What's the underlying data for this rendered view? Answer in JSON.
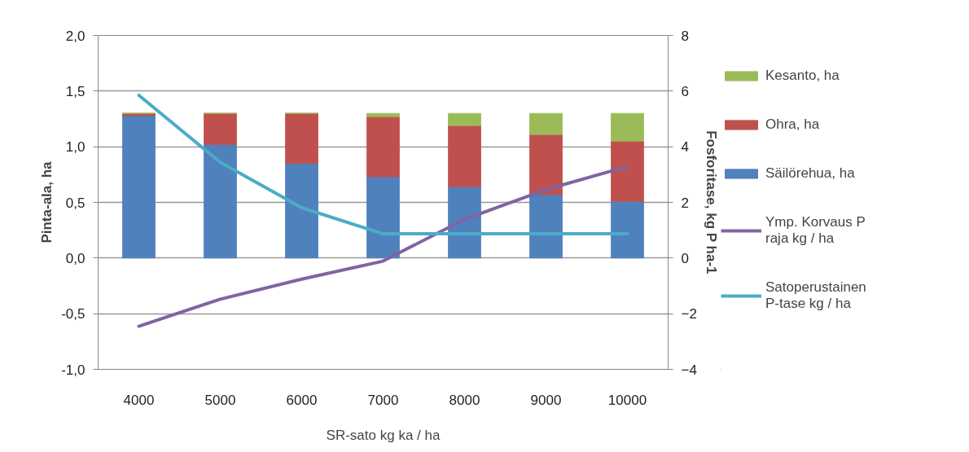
{
  "chart_data": {
    "type": "bar",
    "stacked": true,
    "xlabel": "SR-sato kg ka / ha",
    "ylabel": "Pinta-ala, ha",
    "y2label": "Fosforitase, kg P ha-1",
    "categories": [
      "4000",
      "5000",
      "6000",
      "7000",
      "8000",
      "9000",
      "10000"
    ],
    "series": [
      {
        "name": "Säilörehua, ha",
        "color": "#4f81bd",
        "values": [
          1.28,
          1.02,
          0.85,
          0.73,
          0.64,
          0.57,
          0.51
        ]
      },
      {
        "name": "Ohra, ha",
        "color": "#c0504d",
        "values": [
          0.02,
          0.28,
          0.45,
          0.54,
          0.55,
          0.54,
          0.54
        ]
      },
      {
        "name": "Kesanto, ha",
        "color": "#9bbb59",
        "values": [
          0,
          0,
          0,
          0.03,
          0.11,
          0.19,
          0.25
        ]
      },
      {
        "name": "Ymp. Korvaus P raja kg / ha",
        "type": "line",
        "axis": "y2",
        "color": "#8064a2",
        "values": [
          -2.45,
          -1.48,
          -0.76,
          -0.11,
          1.39,
          2.46,
          3.29
        ]
      },
      {
        "name": "Satoperustainen P-tase kg / ha",
        "type": "line",
        "axis": "y2",
        "color": "#4bacc6",
        "values": [
          5.85,
          3.44,
          1.81,
          0.87,
          0.87,
          0.87,
          0.87
        ]
      }
    ],
    "ylim": [
      -1,
      2
    ],
    "yticks": [
      {
        "value": -1,
        "label": "-1,0"
      },
      {
        "value": -0.5,
        "label": "-0,5"
      },
      {
        "value": 0,
        "label": "0,0"
      },
      {
        "value": 0.5,
        "label": "0,5"
      },
      {
        "value": 1,
        "label": "1,0"
      },
      {
        "value": 1.5,
        "label": "1,5"
      },
      {
        "value": 2,
        "label": "2,0"
      }
    ],
    "y2lim": [
      -4,
      8
    ],
    "y2ticks": [
      -4,
      -2,
      0,
      2,
      4,
      6,
      8
    ],
    "grid": "y",
    "legend": "right",
    "line_style": "solid",
    "marker": "none"
  }
}
